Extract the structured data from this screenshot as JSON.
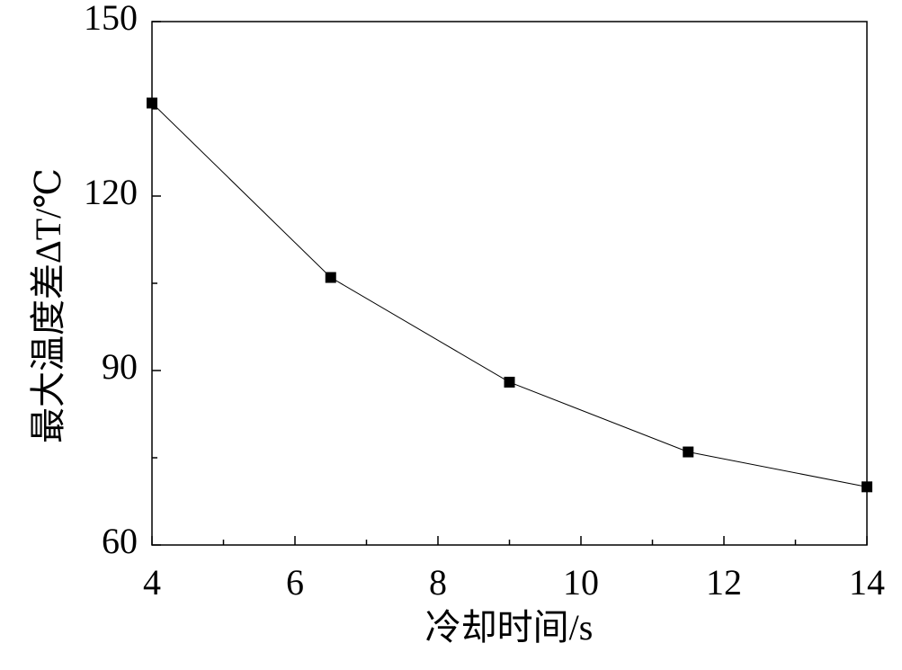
{
  "chart_data": {
    "type": "line",
    "x_label": "冷却时间/s",
    "y_label": "最大温度差ΔT/℃",
    "x": [
      4,
      6.5,
      9,
      11.5,
      14
    ],
    "series": [
      {
        "color": "#000000",
        "values": [
          136,
          106,
          88,
          76,
          70
        ]
      }
    ],
    "xlim": [
      4,
      14
    ],
    "xticks": [
      4,
      6,
      8,
      10,
      12,
      14
    ],
    "xminorticks": [
      5,
      7,
      9,
      11,
      13
    ],
    "ylim": [
      60,
      150
    ],
    "yticks": [
      60,
      90,
      120,
      150
    ],
    "yminorticks": [
      75,
      105,
      135
    ],
    "grid": false,
    "marker": "square"
  }
}
